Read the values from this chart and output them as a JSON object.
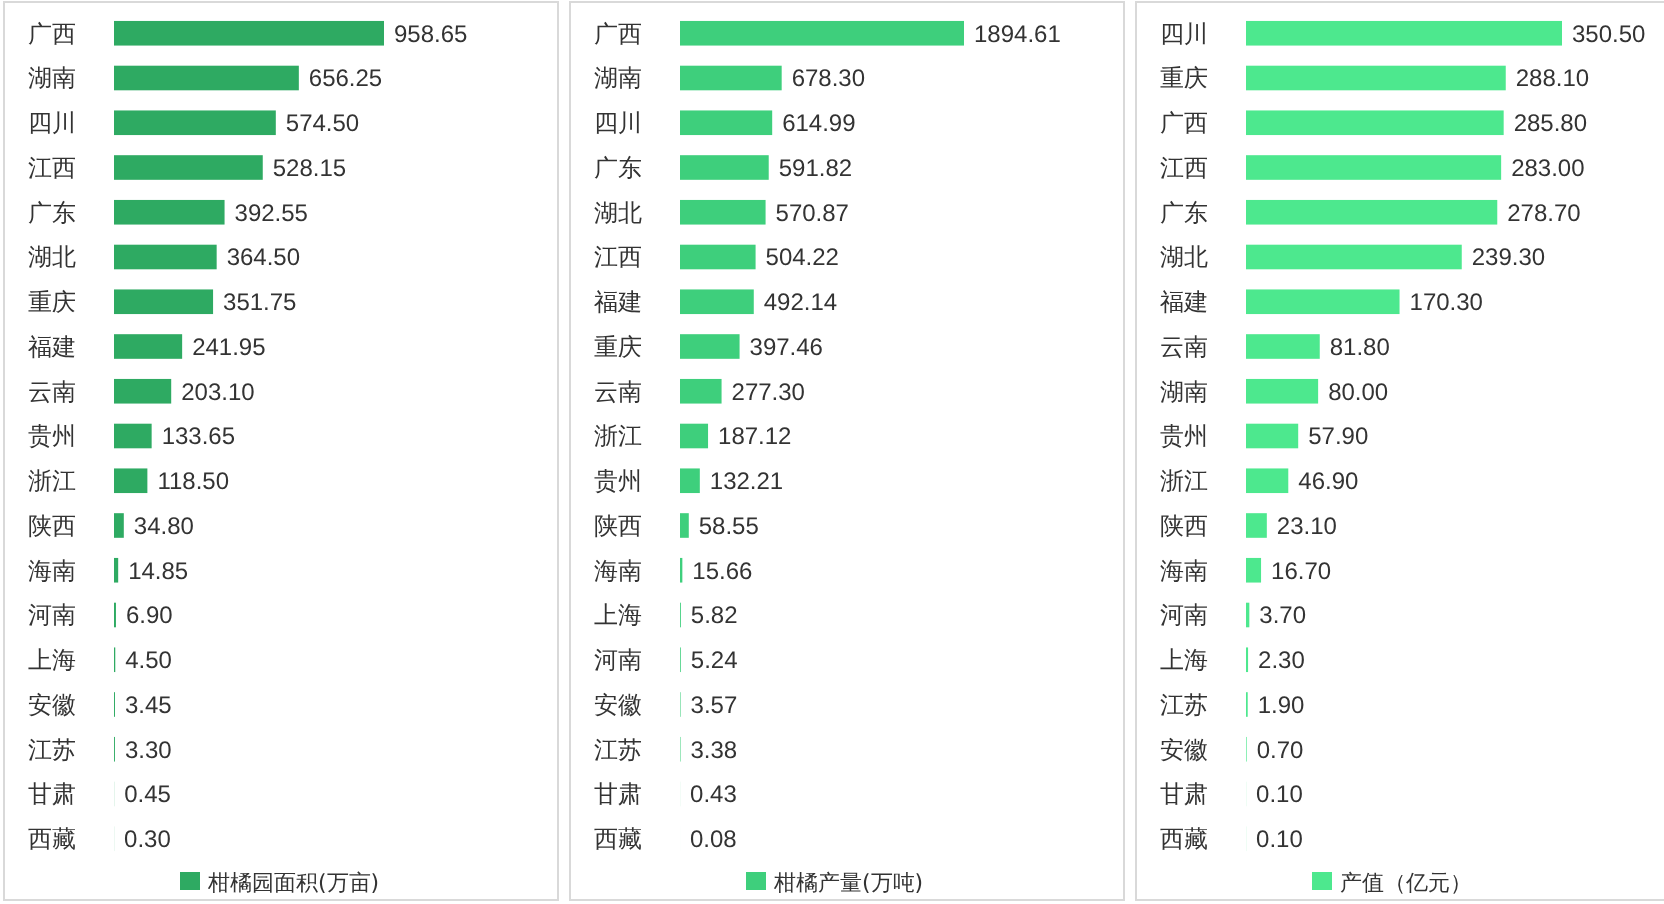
{
  "chart_data": [
    {
      "type": "bar",
      "orientation": "horizontal",
      "tick_labels": "y",
      "legend": "bottom",
      "categories": [
        "广西",
        "湖南",
        "四川",
        "江西",
        "广东",
        "湖北",
        "重庆",
        "福建",
        "云南",
        "贵州",
        "浙江",
        "陕西",
        "海南",
        "河南",
        "上海",
        "安徽",
        "江苏",
        "甘肃",
        "西藏"
      ],
      "series": [
        {
          "name": "柑橘园面积(万亩)",
          "color": "#2eaa62",
          "values": [
            958.65,
            656.25,
            574.5,
            528.15,
            392.55,
            364.5,
            351.75,
            241.95,
            203.1,
            133.65,
            118.5,
            34.8,
            14.85,
            6.9,
            4.5,
            3.45,
            3.3,
            0.45,
            0.3
          ],
          "value_labels": [
            "958.65",
            "656.25",
            "574.50",
            "528.15",
            "392.55",
            "364.50",
            "351.75",
            "241.95",
            "203.10",
            "133.65",
            "118.50",
            "34.80",
            "14.85",
            "6.90",
            "4.50",
            "3.45",
            "3.30",
            "0.45",
            "0.30"
          ]
        }
      ]
    },
    {
      "type": "bar",
      "orientation": "horizontal",
      "tick_labels": "y",
      "legend": "bottom",
      "categories": [
        "广西",
        "湖南",
        "四川",
        "广东",
        "湖北",
        "江西",
        "福建",
        "重庆",
        "云南",
        "浙江",
        "贵州",
        "陕西",
        "海南",
        "上海",
        "河南",
        "安徽",
        "江苏",
        "甘肃",
        "西藏"
      ],
      "series": [
        {
          "name": "柑橘产量(万吨)",
          "color": "#3ecf7c",
          "values": [
            1894.61,
            678.3,
            614.99,
            591.82,
            570.87,
            504.22,
            492.14,
            397.46,
            277.3,
            187.12,
            132.21,
            58.55,
            15.66,
            5.82,
            5.24,
            3.57,
            3.38,
            0.43,
            0.08
          ],
          "value_labels": [
            "1894.61",
            "678.30",
            "614.99",
            "591.82",
            "570.87",
            "504.22",
            "492.14",
            "397.46",
            "277.30",
            "187.12",
            "132.21",
            "58.55",
            "15.66",
            "5.82",
            "5.24",
            "3.57",
            "3.38",
            "0.43",
            "0.08"
          ]
        }
      ]
    },
    {
      "type": "bar",
      "orientation": "horizontal",
      "tick_labels": "y",
      "legend": "bottom",
      "categories": [
        "四川",
        "重庆",
        "广西",
        "江西",
        "广东",
        "湖北",
        "福建",
        "云南",
        "湖南",
        "贵州",
        "浙江",
        "陕西",
        "海南",
        "河南",
        "上海",
        "江苏",
        "安徽",
        "甘肃",
        "西藏"
      ],
      "series": [
        {
          "name": "产值（亿元）",
          "color": "#4de88e",
          "values": [
            350.5,
            288.1,
            285.8,
            283.0,
            278.7,
            239.3,
            170.3,
            81.8,
            80.0,
            57.9,
            46.9,
            23.1,
            16.7,
            3.7,
            2.3,
            1.9,
            0.7,
            0.1,
            0.1
          ],
          "value_labels": [
            "350.50",
            "288.10",
            "285.80",
            "283.00",
            "278.70",
            "239.30",
            "170.30",
            "81.80",
            "80.00",
            "57.90",
            "46.90",
            "23.10",
            "16.70",
            "3.70",
            "2.30",
            "1.90",
            "0.70",
            "0.10",
            "0.10"
          ]
        }
      ]
    }
  ]
}
